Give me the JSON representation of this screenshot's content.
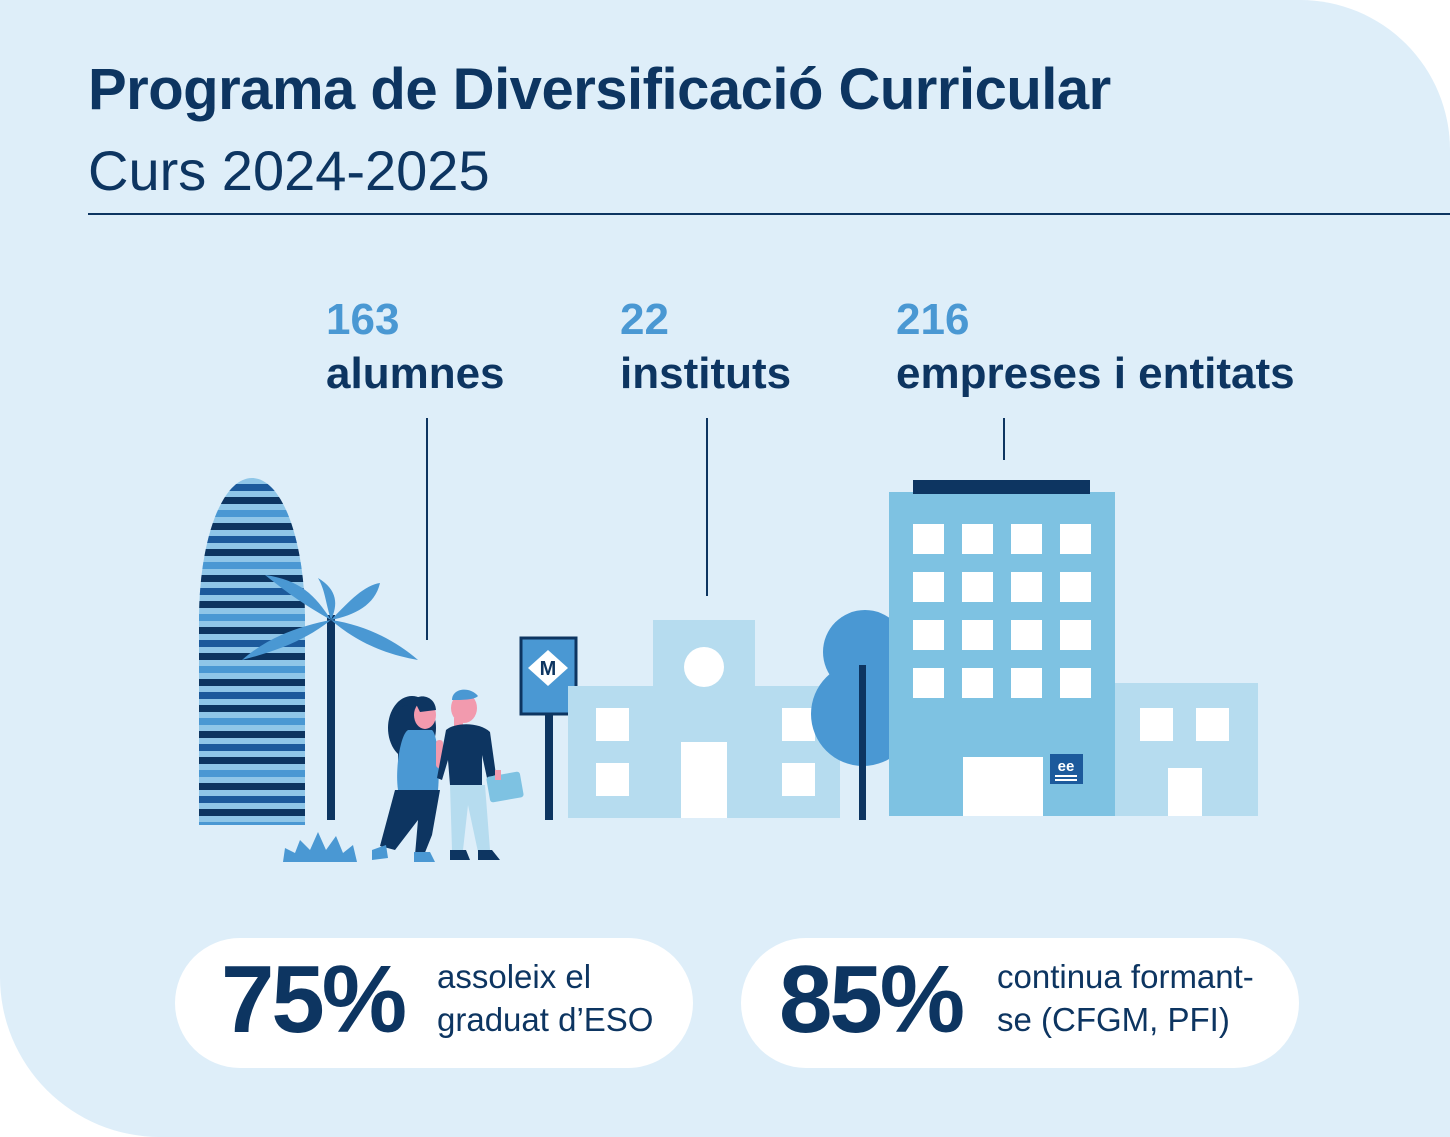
{
  "header": {
    "title": "Programa de Diversificació Curricular",
    "subtitle": "Curs 2024-2025"
  },
  "stats": [
    {
      "value": "163",
      "label": "alumnes"
    },
    {
      "value": "22",
      "label": "instituts"
    },
    {
      "value": "216",
      "label": "empreses i entitats"
    }
  ],
  "illustration": {
    "metro_sign": "M",
    "company_logo": "ee",
    "icons": [
      "tower-icon",
      "palm-tree-icon",
      "students-icon",
      "metro-sign-icon",
      "school-building-icon",
      "tree-icon",
      "office-building-icon"
    ]
  },
  "results": [
    {
      "percent": "75%",
      "line1": "assoleix el",
      "line2": "graduat d’ESO"
    },
    {
      "percent": "85%",
      "line1": "continua formant-",
      "line2": "se (CFGM, PFI)"
    }
  ],
  "colors": {
    "background": "#deeef9",
    "navy": "#0d3561",
    "accent": "#4a98d3",
    "light_blue": "#b6dcef",
    "mid_blue": "#7ec2e2"
  }
}
